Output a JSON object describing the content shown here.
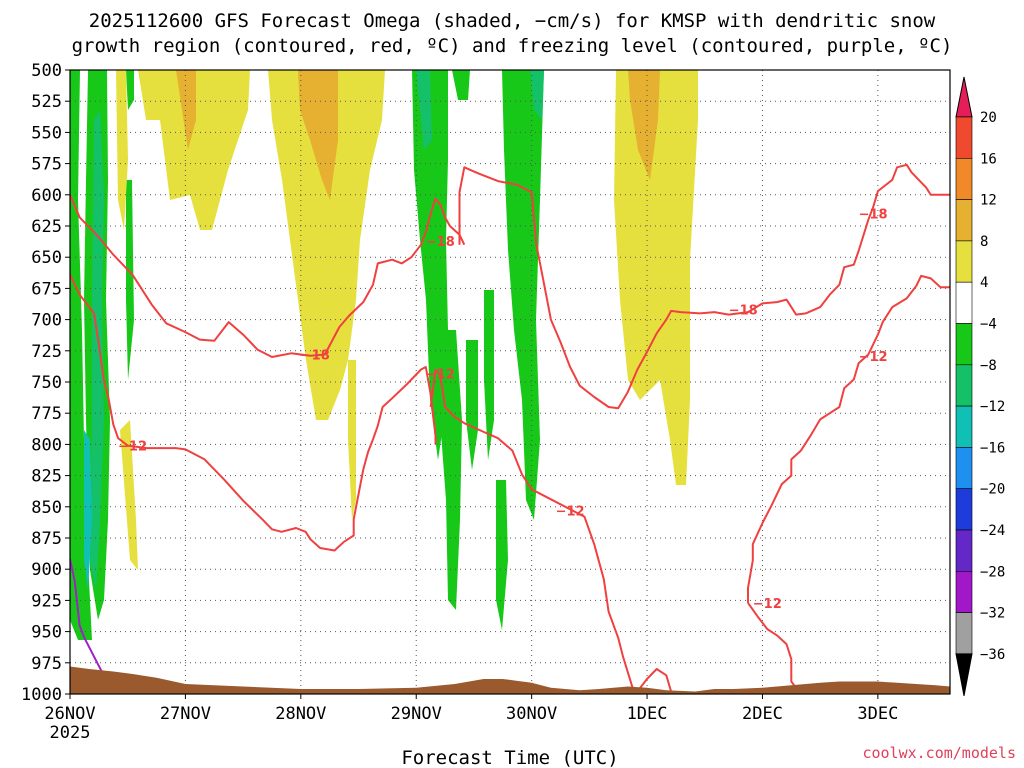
{
  "chart_data": {
    "type": "time-height-cross-section",
    "title_line1": "2025112600 GFS Forecast Omega (shaded, −cm/s) for KMSP with dendritic snow",
    "title_line2": "growth region (contoured, red, ºC) and freezing level (contoured, purple, ºC)",
    "xlabel": "Forecast Time (UTC)",
    "credit": "coolwx.com/models",
    "x_ticks": [
      {
        "hour": 0,
        "label": "26NOV",
        "sub": "2025"
      },
      {
        "hour": 24,
        "label": "27NOV"
      },
      {
        "hour": 48,
        "label": "28NOV"
      },
      {
        "hour": 72,
        "label": "29NOV"
      },
      {
        "hour": 96,
        "label": "30NOV"
      },
      {
        "hour": 120,
        "label": "1DEC"
      },
      {
        "hour": 144,
        "label": "2DEC"
      },
      {
        "hour": 168,
        "label": "3DEC"
      }
    ],
    "xlim_hours": [
      0,
      183
    ],
    "y_ticks": [
      "500",
      "525",
      "550",
      "575",
      "600",
      "625",
      "650",
      "675",
      "700",
      "725",
      "750",
      "775",
      "800",
      "825",
      "850",
      "875",
      "900",
      "925",
      "950",
      "975",
      "1000"
    ],
    "ylim_hpa": [
      500,
      1000
    ],
    "colorbar": {
      "labels": [
        "20",
        "16",
        "12",
        "8",
        "4",
        "−4",
        "−8",
        "−12",
        "−16",
        "−20",
        "−24",
        "−28",
        "−32",
        "−36"
      ],
      "colors": [
        "#e51e5a",
        "#ef4a2e",
        "#f08a28",
        "#e6b030",
        "#e6e03e",
        "#ffffff",
        "#18c818",
        "#14c068",
        "#10c0b4",
        "#1e90f0",
        "#1e3cdc",
        "#6428c8",
        "#a018c8",
        "#a0a0a0",
        "#000000"
      ]
    },
    "shading_levels": {
      "yellow_4_to_8": "#e6e03e",
      "orange_8_to_12": "#e6b030",
      "green_neg8_to_neg4": "#18c818",
      "teal_neg12_to_neg8": "#14c068",
      "cyan_neg16_to_neg12": "#10c0b4",
      "blue_neg20_to_neg16": "#1e90f0"
    },
    "contour_color": "#f04040",
    "freezing_color": "#a020c8",
    "ground_color": "#9a5a2e",
    "contour_labels": [
      {
        "text": "−18",
        "hour": 51,
        "p": 728
      },
      {
        "text": "−18",
        "hour": 77,
        "p": 637
      },
      {
        "text": "−18",
        "hour": 140,
        "p": 692
      },
      {
        "text": "−18",
        "hour": 167,
        "p": 615
      },
      {
        "text": "−12",
        "hour": 13,
        "p": 801
      },
      {
        "text": "−12",
        "hour": 77,
        "p": 743
      },
      {
        "text": "−12",
        "hour": 104,
        "p": 853
      },
      {
        "text": "−12",
        "hour": 145,
        "p": 927
      },
      {
        "text": "−12",
        "hour": 167,
        "p": 729
      }
    ],
    "contours": {
      "dgz_minus18_a": [
        [
          0,
          600
        ],
        [
          2,
          618
        ],
        [
          6,
          634
        ],
        [
          9,
          648
        ],
        [
          13,
          664
        ],
        [
          17,
          688
        ],
        [
          20,
          703
        ],
        [
          24,
          710
        ],
        [
          27,
          716
        ],
        [
          30,
          717
        ],
        [
          33,
          702
        ],
        [
          36,
          712
        ],
        [
          39,
          724
        ],
        [
          42,
          730
        ],
        [
          46,
          727
        ],
        [
          50,
          729
        ],
        [
          53,
          728
        ],
        [
          56,
          706
        ],
        [
          58,
          697
        ],
        [
          61,
          686
        ],
        [
          63,
          672
        ],
        [
          64,
          655
        ],
        [
          67,
          652
        ],
        [
          69,
          655
        ],
        [
          71,
          650
        ],
        [
          73,
          640
        ],
        [
          74,
          630
        ],
        [
          75,
          615
        ],
        [
          76,
          603
        ],
        [
          77,
          608
        ],
        [
          78,
          618
        ],
        [
          79,
          625
        ],
        [
          81,
          632
        ],
        [
          82,
          640
        ]
      ],
      "dgz_minus18_b": [
        [
          81,
          640
        ],
        [
          81,
          598
        ],
        [
          82,
          578
        ],
        [
          85,
          583
        ],
        [
          89,
          589
        ],
        [
          93,
          592
        ],
        [
          96,
          598
        ],
        [
          97,
          640
        ],
        [
          99,
          680
        ],
        [
          100,
          700
        ],
        [
          102,
          718
        ],
        [
          104,
          738
        ],
        [
          106,
          753
        ],
        [
          109,
          762
        ],
        [
          112,
          770
        ],
        [
          114,
          771
        ],
        [
          116,
          758
        ],
        [
          118,
          740
        ],
        [
          120,
          726
        ],
        [
          122,
          711
        ],
        [
          124,
          700
        ],
        [
          125,
          693
        ],
        [
          127,
          694
        ],
        [
          131,
          695
        ],
        [
          134,
          694
        ],
        [
          137,
          696
        ],
        [
          141,
          694
        ],
        [
          144,
          687
        ],
        [
          147,
          686
        ],
        [
          149,
          684
        ],
        [
          151,
          696
        ],
        [
          153,
          695
        ],
        [
          156,
          690
        ],
        [
          158,
          680
        ],
        [
          160,
          672
        ],
        [
          161,
          658
        ],
        [
          163,
          656
        ],
        [
          164,
          645
        ],
        [
          166,
          620
        ],
        [
          167,
          610
        ],
        [
          168,
          597
        ],
        [
          171,
          588
        ],
        [
          172,
          578
        ],
        [
          174,
          576
        ],
        [
          175,
          582
        ],
        [
          177,
          590
        ],
        [
          178,
          594
        ],
        [
          179,
          600
        ],
        [
          183,
          600
        ]
      ],
      "dgz_minus12_a": [
        [
          0,
          664
        ],
        [
          2,
          680
        ],
        [
          5,
          695
        ],
        [
          6,
          720
        ],
        [
          7,
          748
        ],
        [
          8,
          763
        ],
        [
          9,
          784
        ],
        [
          10,
          795
        ],
        [
          12,
          801
        ],
        [
          16,
          803
        ],
        [
          22,
          803
        ],
        [
          24,
          804
        ],
        [
          28,
          812
        ],
        [
          32,
          828
        ],
        [
          36,
          845
        ],
        [
          40,
          860
        ],
        [
          42,
          868
        ],
        [
          44,
          870
        ],
        [
          47,
          867
        ],
        [
          49,
          870
        ],
        [
          50,
          876
        ],
        [
          52,
          883
        ],
        [
          55,
          885
        ],
        [
          57,
          878
        ],
        [
          59,
          873
        ],
        [
          59,
          860
        ],
        [
          60,
          840
        ],
        [
          61,
          820
        ],
        [
          62,
          806
        ],
        [
          63,
          796
        ],
        [
          64,
          785
        ],
        [
          65,
          770
        ],
        [
          67,
          763
        ],
        [
          70,
          752
        ],
        [
          73,
          740
        ],
        [
          74,
          738
        ],
        [
          75,
          760
        ],
        [
          76,
          793
        ],
        [
          76,
          800
        ]
      ],
      "dgz_minus12_b": [
        [
          75,
          770
        ],
        [
          76,
          740
        ],
        [
          77,
          745
        ],
        [
          78,
          770
        ],
        [
          80,
          778
        ],
        [
          82,
          783
        ],
        [
          86,
          790
        ],
        [
          89,
          795
        ],
        [
          92,
          805
        ],
        [
          94,
          824
        ],
        [
          96,
          836
        ],
        [
          100,
          844
        ],
        [
          104,
          852
        ],
        [
          107,
          858
        ],
        [
          109,
          880
        ],
        [
          111,
          908
        ],
        [
          112,
          934
        ],
        [
          114,
          955
        ],
        [
          115,
          970
        ],
        [
          117,
          995
        ],
        [
          118,
          998
        ],
        [
          120,
          988
        ],
        [
          122,
          980
        ],
        [
          124,
          985
        ],
        [
          125,
          998
        ]
      ],
      "dgz_minus12_c": [
        [
          141,
          927
        ],
        [
          141,
          915
        ],
        [
          142,
          893
        ],
        [
          142,
          880
        ],
        [
          144,
          863
        ],
        [
          146,
          848
        ],
        [
          148,
          832
        ],
        [
          150,
          825
        ],
        [
          150,
          812
        ],
        [
          152,
          805
        ],
        [
          154,
          793
        ],
        [
          156,
          780
        ],
        [
          158,
          775
        ],
        [
          160,
          770
        ],
        [
          161,
          755
        ],
        [
          163,
          748
        ],
        [
          164,
          735
        ],
        [
          166,
          728
        ],
        [
          168,
          712
        ],
        [
          169,
          702
        ],
        [
          171,
          690
        ],
        [
          174,
          683
        ],
        [
          176,
          673
        ],
        [
          177,
          665
        ],
        [
          179,
          667
        ],
        [
          181,
          674
        ],
        [
          183,
          674
        ]
      ],
      "dgz_minus12_d": [
        [
          141,
          927
        ],
        [
          143,
          938
        ],
        [
          145,
          948
        ],
        [
          147,
          953
        ],
        [
          149,
          960
        ],
        [
          150,
          972
        ],
        [
          150,
          990
        ],
        [
          151,
          995
        ]
      ]
    },
    "freezing_level": [
      [
        0,
        892
      ],
      [
        1,
        910
      ],
      [
        2,
        945
      ],
      [
        3,
        955
      ],
      [
        5,
        970
      ],
      [
        7,
        985
      ]
    ],
    "ground_top": [
      [
        0,
        978
      ],
      [
        4,
        980
      ],
      [
        9,
        982
      ],
      [
        13,
        984
      ],
      [
        18,
        987
      ],
      [
        24,
        992
      ],
      [
        36,
        994
      ],
      [
        48,
        996
      ],
      [
        60,
        996
      ],
      [
        72,
        995
      ],
      [
        80,
        992
      ],
      [
        86,
        988
      ],
      [
        90,
        988
      ],
      [
        94,
        990
      ],
      [
        96,
        991
      ],
      [
        100,
        995
      ],
      [
        106,
        997
      ],
      [
        110,
        996
      ],
      [
        116,
        994
      ],
      [
        120,
        995
      ],
      [
        124,
        997
      ],
      [
        130,
        998
      ],
      [
        134,
        996
      ],
      [
        138,
        996
      ],
      [
        144,
        995
      ],
      [
        150,
        993
      ],
      [
        156,
        991
      ],
      [
        160,
        990
      ],
      [
        164,
        990
      ],
      [
        168,
        990
      ],
      [
        172,
        991
      ],
      [
        176,
        992
      ],
      [
        180,
        993
      ],
      [
        183,
        994
      ]
    ]
  }
}
